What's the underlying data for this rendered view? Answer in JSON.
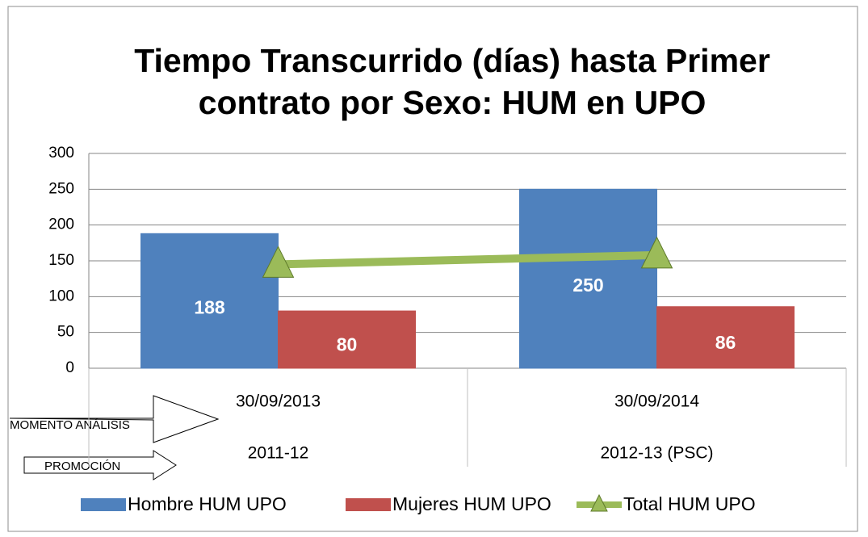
{
  "chart_data": {
    "type": "bar_line",
    "title": "Tiempo Transcurrido (días) hasta Primer contrato por Sexo: HUM en UPO",
    "categories": [
      "30/09/2013",
      "30/09/2014"
    ],
    "categories2": [
      "2011-12",
      "2012-13 (PSC)"
    ],
    "series": [
      {
        "name": "Hombre HUM UPO",
        "type": "bar",
        "color": "#4f81bd",
        "values": [
          188,
          250
        ]
      },
      {
        "name": "Mujeres HUM UPO",
        "type": "bar",
        "color": "#c0504d",
        "values": [
          80,
          86
        ]
      },
      {
        "name": "Total HUM UPO",
        "type": "line",
        "color": "#9bbb59",
        "values": [
          145,
          158
        ]
      }
    ],
    "ylim": [
      0,
      300
    ],
    "yticks": [
      0,
      50,
      100,
      150,
      200,
      250,
      300
    ],
    "grid": true,
    "annotations": [
      "MOMENTO ANÁLISIS",
      "PROMOCIÓN"
    ],
    "legend": "bottom"
  }
}
